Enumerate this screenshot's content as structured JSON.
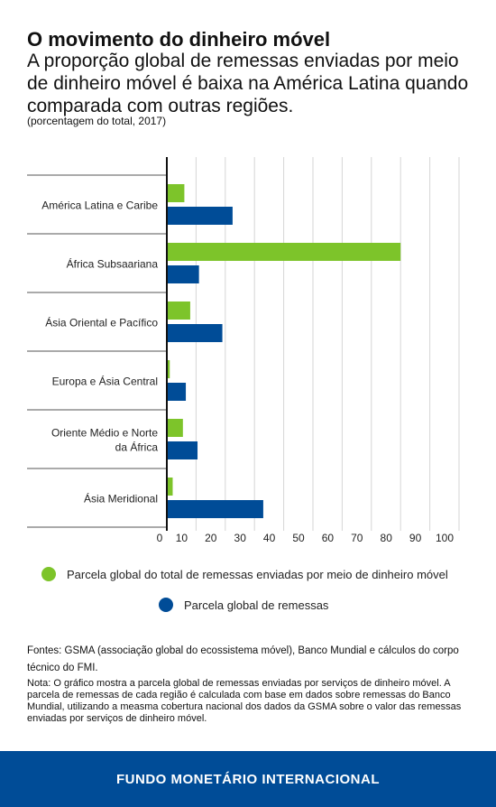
{
  "header": {
    "title": "O movimento do dinheiro móvel",
    "subtitle": "A proporção global de remessas enviadas por meio de dinheiro móvel é baixa na América Latina quando comparada com outras regiões.",
    "unit_note": "(porcentagem do total, 2017)"
  },
  "chart_data": {
    "type": "bar",
    "orientation": "horizontal",
    "categories": [
      "América Latina e Caribe",
      "África Subsaariana",
      "Ásia Oriental e Pacífico",
      "Europa e Ásia Central",
      "Oriente Médio e Norte da África",
      "Ásia Meridional"
    ],
    "series": [
      {
        "name": "Parcela global do total de remessas enviadas por meio de dinheiro móvel",
        "color": "#7dc42a",
        "values": [
          6,
          80,
          8,
          1,
          5.5,
          2
        ]
      },
      {
        "name": "Parcela global de remessas",
        "color": "#004c97",
        "values": [
          22.5,
          11,
          19,
          6.5,
          10.5,
          33
        ]
      }
    ],
    "x_ticks": [
      "0",
      "10",
      "20",
      "30",
      "40",
      "50",
      "60",
      "70",
      "80",
      "90",
      "100"
    ],
    "xlim": [
      0,
      100
    ],
    "grid": true,
    "legend_position": "bottom"
  },
  "sources": "Fontes: GSMA (associação global do ecossistema móvel), Banco Mundial e cálculos do corpo técnico do FMI.",
  "note": "Nota: O gráfico mostra a parcela global de remessas enviadas por serviços de dinheiro móvel. A parcela de remessas de cada região é calculada com base em dados sobre remessas do Banco Mundial, utilizando a measma cobertura nacional dos dados da GSMA sobre o valor das remessas enviadas por serviços de dinheiro móvel.",
  "footer": {
    "organization": "FUNDO MONETÁRIO INTERNACIONAL"
  }
}
